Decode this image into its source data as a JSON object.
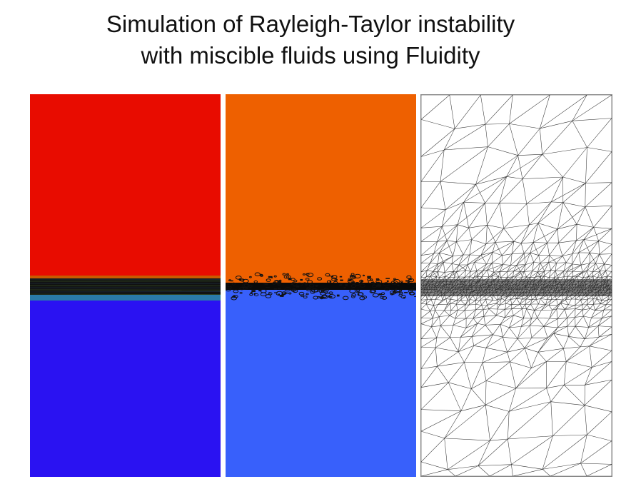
{
  "title": {
    "line1": "Simulation of Rayleigh-Taylor instability",
    "line2": "with miscible fluids using Fluidity"
  },
  "panels": [
    {
      "name": "density-field-panel",
      "upper_color": "#e80c00",
      "lower_color": "#2a12f2",
      "interface_color": "#111111"
    },
    {
      "name": "mixing-field-panel",
      "upper_color": "#ee6000",
      "lower_color": "#3860fb",
      "interface_color": "#0a0a0a"
    },
    {
      "name": "adaptive-mesh-panel",
      "line_color": "#333333",
      "background": "#ffffff"
    }
  ]
}
